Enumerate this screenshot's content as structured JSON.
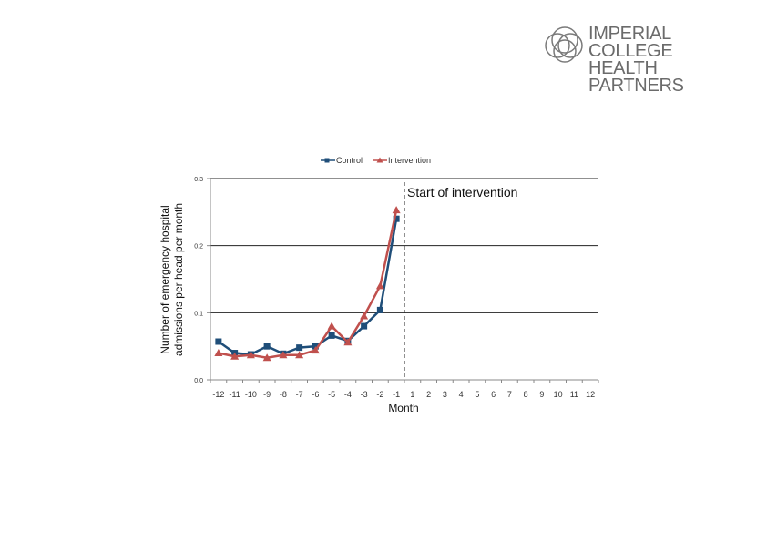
{
  "logo": {
    "line1": "IMPERIAL COLLEGE",
    "line2": "HEALTH PARTNERS",
    "icon": "imperial-college-health-partners-logo-icon"
  },
  "chart_data": {
    "type": "line",
    "title": "",
    "xlabel": "Month",
    "ylabel_line1": "Number of emergency hospital",
    "ylabel_line2": "admissions per head per month",
    "ylim": [
      0,
      0.3
    ],
    "yticks": [
      "0.0",
      "0.1",
      "0.2",
      "0.3"
    ],
    "categories": [
      "-12",
      "-11",
      "-10",
      "-9",
      "-8",
      "-7",
      "-6",
      "-5",
      "-4",
      "-3",
      "-2",
      "-1",
      "1",
      "2",
      "3",
      "4",
      "5",
      "6",
      "7",
      "8",
      "9",
      "10",
      "11",
      "12"
    ],
    "legend_position": "top",
    "grid": "horizontal",
    "annotation": "Start of intervention",
    "series": [
      {
        "name": "Control",
        "color": "#1f4e79",
        "marker": "square",
        "x": [
          -12,
          -11,
          -10,
          -9,
          -8,
          -7,
          -6,
          -5,
          -4,
          -3,
          -2,
          -1
        ],
        "values": [
          0.057,
          0.04,
          0.038,
          0.05,
          0.039,
          0.048,
          0.05,
          0.066,
          0.058,
          0.08,
          0.104,
          0.24
        ]
      },
      {
        "name": "Intervention",
        "color": "#c0504d",
        "marker": "triangle",
        "x": [
          -12,
          -11,
          -10,
          -9,
          -8,
          -7,
          -6,
          -5,
          -4,
          -3,
          -2,
          -1
        ],
        "values": [
          0.04,
          0.035,
          0.037,
          0.033,
          0.037,
          0.037,
          0.044,
          0.08,
          0.056,
          0.095,
          0.14,
          0.253
        ]
      }
    ]
  }
}
